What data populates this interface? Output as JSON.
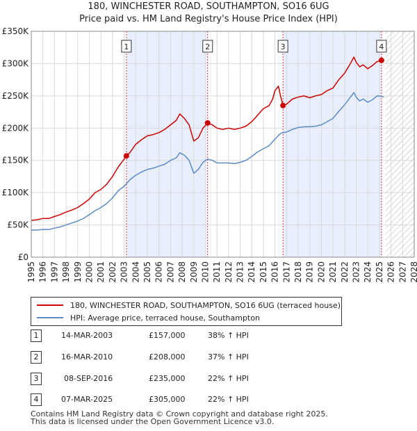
{
  "title": "180, WINCHESTER ROAD, SOUTHAMPTON, SO16 6UG",
  "subtitle": "Price paid vs. HM Land Registry's House Price Index (HPI)",
  "colors": {
    "property": "#cc0000",
    "hpi": "#5b8ac6",
    "shade": "#e8eefb",
    "marker": "#cc0000"
  },
  "chart_data": {
    "type": "line",
    "title": "180, WINCHESTER ROAD, SOUTHAMPTON, SO16 6UG",
    "subtitle": "Price paid vs. HM Land Registry's House Price Index (HPI)",
    "xlabel": "",
    "ylabel": "",
    "xlim": [
      1995,
      2028
    ],
    "ylim": [
      0,
      350000
    ],
    "x_ticks": [
      1995,
      1996,
      1997,
      1998,
      1999,
      2000,
      2001,
      2002,
      2003,
      2004,
      2005,
      2006,
      2007,
      2008,
      2009,
      2010,
      2011,
      2012,
      2013,
      2014,
      2015,
      2016,
      2017,
      2018,
      2019,
      2020,
      2021,
      2022,
      2023,
      2024,
      2025,
      2026,
      2027,
      2028
    ],
    "y_ticks": [
      {
        "value": 0,
        "label": "£0"
      },
      {
        "value": 50000,
        "label": "£50K"
      },
      {
        "value": 100000,
        "label": "£100K"
      },
      {
        "value": 150000,
        "label": "£150K"
      },
      {
        "value": 200000,
        "label": "£200K"
      },
      {
        "value": 250000,
        "label": "£250K"
      },
      {
        "value": 300000,
        "label": "£300K"
      },
      {
        "value": 350000,
        "label": "£350K"
      }
    ],
    "grid": true,
    "shaded_spans": [
      [
        2003.2,
        2010.2
      ],
      [
        2016.7,
        2025.18
      ]
    ],
    "forecast_from": 2025.5,
    "series": [
      {
        "name": "180, WINCHESTER ROAD, SOUTHAMPTON, SO16 6UG (terraced house)",
        "color": "#cc0000",
        "points": [
          [
            1995,
            57000
          ],
          [
            1995.5,
            58000
          ],
          [
            1996,
            60000
          ],
          [
            1996.5,
            60000
          ],
          [
            1997,
            63000
          ],
          [
            1997.5,
            66000
          ],
          [
            1998,
            70000
          ],
          [
            1998.5,
            73000
          ],
          [
            1999,
            77000
          ],
          [
            1999.5,
            83000
          ],
          [
            2000,
            90000
          ],
          [
            2000.5,
            100000
          ],
          [
            2001,
            105000
          ],
          [
            2001.5,
            113000
          ],
          [
            2002,
            125000
          ],
          [
            2002.5,
            140000
          ],
          [
            2003,
            152000
          ],
          [
            2003.2,
            157000
          ],
          [
            2003.5,
            162000
          ],
          [
            2004,
            175000
          ],
          [
            2004.5,
            182000
          ],
          [
            2005,
            188000
          ],
          [
            2005.5,
            190000
          ],
          [
            2006,
            193000
          ],
          [
            2006.5,
            198000
          ],
          [
            2007,
            205000
          ],
          [
            2007.5,
            212000
          ],
          [
            2007.8,
            222000
          ],
          [
            2008.2,
            215000
          ],
          [
            2008.6,
            205000
          ],
          [
            2009,
            180000
          ],
          [
            2009.4,
            185000
          ],
          [
            2009.8,
            200000
          ],
          [
            2010.2,
            208000
          ],
          [
            2010.6,
            205000
          ],
          [
            2011,
            200000
          ],
          [
            2011.5,
            198000
          ],
          [
            2012,
            200000
          ],
          [
            2012.5,
            198000
          ],
          [
            2013,
            200000
          ],
          [
            2013.5,
            203000
          ],
          [
            2014,
            210000
          ],
          [
            2014.5,
            220000
          ],
          [
            2015,
            230000
          ],
          [
            2015.5,
            235000
          ],
          [
            2015.8,
            245000
          ],
          [
            2016,
            258000
          ],
          [
            2016.3,
            265000
          ],
          [
            2016.5,
            248000
          ],
          [
            2016.7,
            235000
          ],
          [
            2017,
            237000
          ],
          [
            2017.5,
            245000
          ],
          [
            2018,
            248000
          ],
          [
            2018.5,
            250000
          ],
          [
            2019,
            247000
          ],
          [
            2019.5,
            250000
          ],
          [
            2020,
            252000
          ],
          [
            2020.5,
            258000
          ],
          [
            2021,
            262000
          ],
          [
            2021.5,
            275000
          ],
          [
            2022,
            285000
          ],
          [
            2022.5,
            300000
          ],
          [
            2022.8,
            310000
          ],
          [
            2023,
            302000
          ],
          [
            2023.3,
            295000
          ],
          [
            2023.6,
            298000
          ],
          [
            2024,
            292000
          ],
          [
            2024.4,
            297000
          ],
          [
            2024.8,
            303000
          ],
          [
            2025.18,
            305000
          ]
        ]
      },
      {
        "name": "HPI: Average price, terraced house, Southampton",
        "color": "#5b8ac6",
        "points": [
          [
            1995,
            42000
          ],
          [
            1995.5,
            42000
          ],
          [
            1996,
            43000
          ],
          [
            1996.5,
            43000
          ],
          [
            1997,
            45000
          ],
          [
            1997.5,
            47000
          ],
          [
            1998,
            50000
          ],
          [
            1998.5,
            53000
          ],
          [
            1999,
            56000
          ],
          [
            1999.5,
            60000
          ],
          [
            2000,
            66000
          ],
          [
            2000.5,
            72000
          ],
          [
            2001,
            77000
          ],
          [
            2001.5,
            83000
          ],
          [
            2002,
            92000
          ],
          [
            2002.5,
            103000
          ],
          [
            2003,
            110000
          ],
          [
            2003.5,
            120000
          ],
          [
            2004,
            127000
          ],
          [
            2004.5,
            132000
          ],
          [
            2005,
            136000
          ],
          [
            2005.5,
            138000
          ],
          [
            2006,
            141000
          ],
          [
            2006.5,
            144000
          ],
          [
            2007,
            150000
          ],
          [
            2007.5,
            154000
          ],
          [
            2007.8,
            162000
          ],
          [
            2008.2,
            158000
          ],
          [
            2008.6,
            150000
          ],
          [
            2009,
            130000
          ],
          [
            2009.4,
            136000
          ],
          [
            2009.8,
            147000
          ],
          [
            2010.2,
            152000
          ],
          [
            2010.6,
            150000
          ],
          [
            2011,
            146000
          ],
          [
            2011.5,
            146000
          ],
          [
            2012,
            146000
          ],
          [
            2012.5,
            145000
          ],
          [
            2013,
            147000
          ],
          [
            2013.5,
            150000
          ],
          [
            2014,
            156000
          ],
          [
            2014.5,
            163000
          ],
          [
            2015,
            168000
          ],
          [
            2015.5,
            173000
          ],
          [
            2016,
            183000
          ],
          [
            2016.5,
            192000
          ],
          [
            2017,
            194000
          ],
          [
            2017.5,
            198000
          ],
          [
            2018,
            201000
          ],
          [
            2018.5,
            202000
          ],
          [
            2019,
            202000
          ],
          [
            2019.5,
            203000
          ],
          [
            2020,
            205000
          ],
          [
            2020.5,
            210000
          ],
          [
            2021,
            215000
          ],
          [
            2021.5,
            226000
          ],
          [
            2022,
            236000
          ],
          [
            2022.5,
            248000
          ],
          [
            2022.8,
            255000
          ],
          [
            2023,
            248000
          ],
          [
            2023.3,
            242000
          ],
          [
            2023.6,
            245000
          ],
          [
            2024,
            240000
          ],
          [
            2024.4,
            244000
          ],
          [
            2024.8,
            250000
          ],
          [
            2025.18,
            249000
          ],
          [
            2025.4,
            248000
          ]
        ]
      }
    ],
    "sales": [
      {
        "label": "1",
        "x": 2003.2,
        "value": 157000
      },
      {
        "label": "2",
        "x": 2010.2,
        "value": 208000
      },
      {
        "label": "3",
        "x": 2016.69,
        "value": 235000
      },
      {
        "label": "4",
        "x": 2025.18,
        "value": 305000
      }
    ]
  },
  "legend": {
    "property_label": "180, WINCHESTER ROAD, SOUTHAMPTON, SO16 6UG (terraced house)",
    "hpi_label": "HPI: Average price, terraced house, Southampton"
  },
  "transactions": [
    {
      "num": "1",
      "date": "14-MAR-2003",
      "price": "£157,000",
      "hpi": "38% ↑ HPI"
    },
    {
      "num": "2",
      "date": "16-MAR-2010",
      "price": "£208,000",
      "hpi": "37% ↑ HPI"
    },
    {
      "num": "3",
      "date": "08-SEP-2016",
      "price": "£235,000",
      "hpi": "22% ↑ HPI"
    },
    {
      "num": "4",
      "date": "07-MAR-2025",
      "price": "£305,000",
      "hpi": "22% ↑ HPI"
    }
  ],
  "footer": {
    "line1": "Contains HM Land Registry data © Crown copyright and database right 2025.",
    "line2": "This data is licensed under the Open Government Licence v3.0."
  }
}
